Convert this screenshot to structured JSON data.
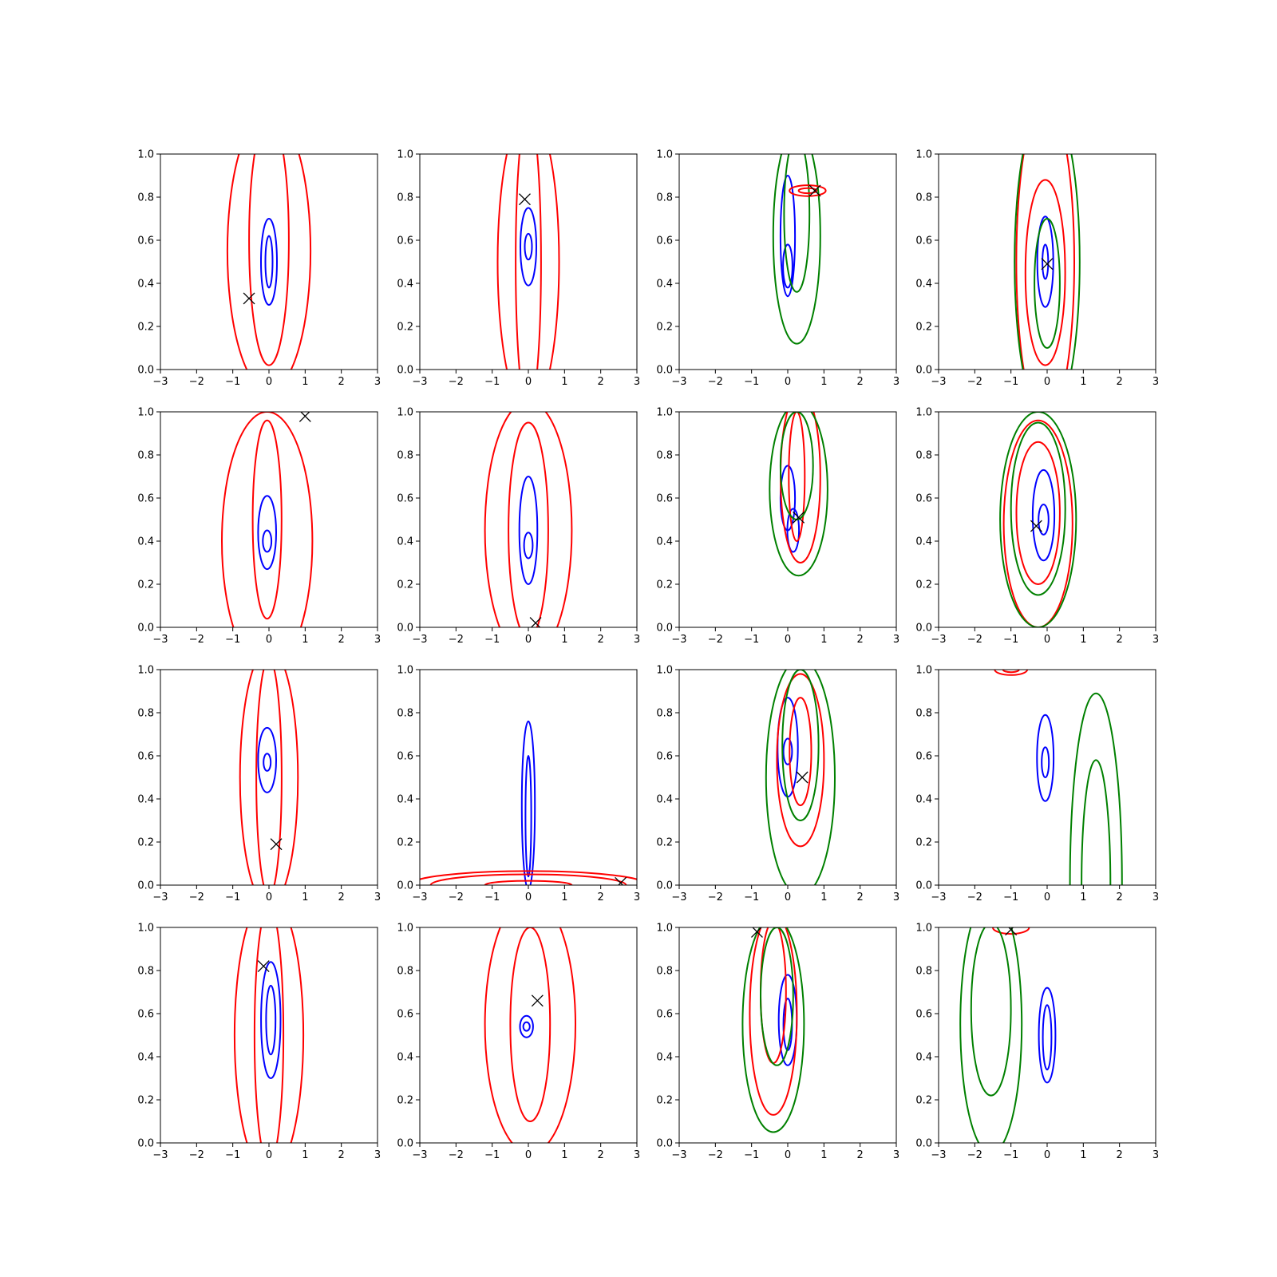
{
  "chart_data": {
    "type": "contour",
    "layout": {
      "rows": 4,
      "cols": 4
    },
    "xlim": [
      -3,
      3
    ],
    "ylim": [
      0,
      1
    ],
    "xticks": [
      "−3",
      "−2",
      "−1",
      "0",
      "1",
      "2",
      "3"
    ],
    "yticks": [
      "0.0",
      "0.2",
      "0.4",
      "0.6",
      "0.8",
      "1.0"
    ],
    "colors": {
      "blue": "#0000ff",
      "red": "#ff0000",
      "green": "#008000",
      "marker": "#000000"
    },
    "marker_symbol": "x",
    "panels": [
      {
        "marker": [
          -0.55,
          0.33
        ],
        "contours": [
          {
            "color": "blue",
            "cx": 0.0,
            "cy": 0.5,
            "rx": 0.22,
            "ry": 0.2
          },
          {
            "color": "blue",
            "cx": 0.0,
            "cy": 0.5,
            "rx": 0.1,
            "ry": 0.12
          },
          {
            "color": "red",
            "cx": 0.0,
            "cy": 0.55,
            "rx": 1.15,
            "ry": 0.65
          },
          {
            "color": "red",
            "cx": 0.0,
            "cy": 0.6,
            "rx": 0.55,
            "ry": 0.58
          }
        ]
      },
      {
        "marker": [
          -0.1,
          0.79
        ],
        "contours": [
          {
            "color": "blue",
            "cx": 0.0,
            "cy": 0.57,
            "rx": 0.22,
            "ry": 0.18
          },
          {
            "color": "blue",
            "cx": 0.0,
            "cy": 0.57,
            "rx": 0.1,
            "ry": 0.06
          },
          {
            "color": "red",
            "cx": 0.0,
            "cy": 0.5,
            "rx": 0.85,
            "ry": 0.7
          },
          {
            "color": "red",
            "cx": 0.0,
            "cy": 0.5,
            "rx": 0.35,
            "ry": 0.7
          }
        ]
      },
      {
        "marker": [
          0.75,
          0.83
        ],
        "contours": [
          {
            "color": "blue",
            "cx": 0.0,
            "cy": 0.62,
            "rx": 0.2,
            "ry": 0.28
          },
          {
            "color": "blue",
            "cx": 0.0,
            "cy": 0.48,
            "rx": 0.13,
            "ry": 0.1
          },
          {
            "color": "green",
            "cx": 0.25,
            "cy": 0.62,
            "rx": 0.65,
            "ry": 0.5
          },
          {
            "color": "green",
            "cx": 0.25,
            "cy": 0.72,
            "rx": 0.35,
            "ry": 0.36
          },
          {
            "color": "red",
            "cx": 0.55,
            "cy": 0.83,
            "rx": 0.5,
            "ry": 0.025
          },
          {
            "color": "red",
            "cx": 0.55,
            "cy": 0.83,
            "rx": 0.25,
            "ry": 0.012
          }
        ]
      },
      {
        "marker": [
          0.0,
          0.49
        ],
        "contours": [
          {
            "color": "blue",
            "cx": -0.05,
            "cy": 0.5,
            "rx": 0.22,
            "ry": 0.21
          },
          {
            "color": "blue",
            "cx": -0.05,
            "cy": 0.5,
            "rx": 0.08,
            "ry": 0.08
          },
          {
            "color": "red",
            "cx": -0.05,
            "cy": 0.45,
            "rx": 0.55,
            "ry": 0.43
          },
          {
            "color": "red",
            "cx": -0.05,
            "cy": 0.5,
            "rx": 0.8,
            "ry": 0.75
          },
          {
            "color": "green",
            "cx": 0.0,
            "cy": 0.5,
            "rx": 0.9,
            "ry": 0.75
          },
          {
            "color": "green",
            "cx": 0.0,
            "cy": 0.4,
            "rx": 0.35,
            "ry": 0.3
          }
        ]
      },
      {
        "marker": [
          1.0,
          0.98
        ],
        "contours": [
          {
            "color": "blue",
            "cx": -0.05,
            "cy": 0.44,
            "rx": 0.25,
            "ry": 0.17
          },
          {
            "color": "blue",
            "cx": -0.05,
            "cy": 0.4,
            "rx": 0.12,
            "ry": 0.05
          },
          {
            "color": "red",
            "cx": -0.05,
            "cy": 0.4,
            "rx": 1.25,
            "ry": 0.6
          },
          {
            "color": "red",
            "cx": -0.05,
            "cy": 0.5,
            "rx": 0.4,
            "ry": 0.46
          }
        ]
      },
      {
        "marker": [
          0.2,
          0.02
        ],
        "contours": [
          {
            "color": "blue",
            "cx": 0.0,
            "cy": 0.45,
            "rx": 0.25,
            "ry": 0.25
          },
          {
            "color": "blue",
            "cx": 0.0,
            "cy": 0.38,
            "rx": 0.12,
            "ry": 0.06
          },
          {
            "color": "red",
            "cx": 0.0,
            "cy": 0.45,
            "rx": 1.2,
            "ry": 0.6
          },
          {
            "color": "red",
            "cx": 0.0,
            "cy": 0.45,
            "rx": 0.55,
            "ry": 0.5
          }
        ]
      },
      {
        "marker": [
          0.3,
          0.51
        ],
        "contours": [
          {
            "color": "blue",
            "cx": 0.0,
            "cy": 0.6,
            "rx": 0.2,
            "ry": 0.15
          },
          {
            "color": "blue",
            "cx": 0.15,
            "cy": 0.45,
            "rx": 0.16,
            "ry": 0.1
          },
          {
            "color": "red",
            "cx": 0.35,
            "cy": 0.7,
            "rx": 0.55,
            "ry": 0.4
          },
          {
            "color": "red",
            "cx": 0.25,
            "cy": 0.7,
            "rx": 0.22,
            "ry": 0.3
          },
          {
            "color": "green",
            "cx": 0.3,
            "cy": 0.64,
            "rx": 0.8,
            "ry": 0.4
          },
          {
            "color": "green",
            "cx": 0.25,
            "cy": 0.75,
            "rx": 0.45,
            "ry": 0.25
          }
        ]
      },
      {
        "marker": [
          -0.3,
          0.47
        ],
        "contours": [
          {
            "color": "blue",
            "cx": -0.1,
            "cy": 0.52,
            "rx": 0.3,
            "ry": 0.21
          },
          {
            "color": "blue",
            "cx": -0.1,
            "cy": 0.5,
            "rx": 0.14,
            "ry": 0.07
          },
          {
            "color": "red",
            "cx": -0.25,
            "cy": 0.53,
            "rx": 0.6,
            "ry": 0.33
          },
          {
            "color": "red",
            "cx": -0.25,
            "cy": 0.48,
            "rx": 0.95,
            "ry": 0.48
          },
          {
            "color": "green",
            "cx": -0.25,
            "cy": 0.5,
            "rx": 1.05,
            "ry": 0.5
          },
          {
            "color": "green",
            "cx": -0.25,
            "cy": 0.55,
            "rx": 0.75,
            "ry": 0.4
          }
        ]
      },
      {
        "marker": [
          0.2,
          0.19
        ],
        "contours": [
          {
            "color": "blue",
            "cx": -0.05,
            "cy": 0.58,
            "rx": 0.25,
            "ry": 0.15
          },
          {
            "color": "blue",
            "cx": -0.05,
            "cy": 0.57,
            "rx": 0.1,
            "ry": 0.04
          },
          {
            "color": "red",
            "cx": 0.0,
            "cy": 0.5,
            "rx": 0.8,
            "ry": 0.6
          },
          {
            "color": "red",
            "cx": 0.0,
            "cy": 0.5,
            "rx": 0.35,
            "ry": 0.55
          }
        ]
      },
      {
        "marker": [
          2.55,
          0.01
        ],
        "contours": [
          {
            "color": "blue",
            "cx": 0.0,
            "cy": 0.37,
            "rx": 0.18,
            "ry": 0.39
          },
          {
            "color": "blue",
            "cx": 0.0,
            "cy": 0.32,
            "rx": 0.08,
            "ry": 0.28
          },
          {
            "color": "red",
            "cx": 0.0,
            "cy": 0.0,
            "rx": 3.3,
            "ry": 0.065
          },
          {
            "color": "red",
            "cx": 0.0,
            "cy": 0.0,
            "rx": 2.7,
            "ry": 0.05
          },
          {
            "color": "red",
            "cx": 0.0,
            "cy": 0.0,
            "rx": 1.2,
            "ry": 0.02
          }
        ]
      },
      {
        "marker": [
          0.4,
          0.5
        ],
        "contours": [
          {
            "color": "blue",
            "cx": 0.0,
            "cy": 0.64,
            "rx": 0.28,
            "ry": 0.23
          },
          {
            "color": "blue",
            "cx": 0.0,
            "cy": 0.62,
            "rx": 0.12,
            "ry": 0.06
          },
          {
            "color": "red",
            "cx": 0.35,
            "cy": 0.58,
            "rx": 0.65,
            "ry": 0.4
          },
          {
            "color": "red",
            "cx": 0.35,
            "cy": 0.62,
            "rx": 0.3,
            "ry": 0.25
          },
          {
            "color": "green",
            "cx": 0.35,
            "cy": 0.5,
            "rx": 0.95,
            "ry": 0.55
          },
          {
            "color": "green",
            "cx": 0.35,
            "cy": 0.65,
            "rx": 0.5,
            "ry": 0.35
          }
        ]
      },
      {
        "marker": null,
        "contours": [
          {
            "color": "blue",
            "cx": -0.05,
            "cy": 0.59,
            "rx": 0.23,
            "ry": 0.2
          },
          {
            "color": "blue",
            "cx": -0.05,
            "cy": 0.57,
            "rx": 0.1,
            "ry": 0.07
          },
          {
            "color": "red",
            "cx": -1.0,
            "cy": 1.0,
            "rx": 0.45,
            "ry": 0.025
          },
          {
            "color": "red",
            "cx": -1.0,
            "cy": 1.0,
            "rx": 0.22,
            "ry": 0.012
          },
          {
            "color": "green",
            "cx": 1.35,
            "cy": 0.0,
            "rx": 0.72,
            "ry": 0.89
          },
          {
            "color": "green",
            "cx": 1.35,
            "cy": 0.0,
            "rx": 0.4,
            "ry": 0.58
          }
        ]
      },
      {
        "marker": [
          -0.15,
          0.82
        ],
        "contours": [
          {
            "color": "blue",
            "cx": 0.05,
            "cy": 0.57,
            "rx": 0.27,
            "ry": 0.27
          },
          {
            "color": "blue",
            "cx": 0.05,
            "cy": 0.57,
            "rx": 0.13,
            "ry": 0.16
          },
          {
            "color": "red",
            "cx": 0.0,
            "cy": 0.5,
            "rx": 0.95,
            "ry": 0.65
          },
          {
            "color": "red",
            "cx": 0.0,
            "cy": 0.5,
            "rx": 0.4,
            "ry": 0.6
          }
        ]
      },
      {
        "marker": [
          0.25,
          0.66
        ],
        "contours": [
          {
            "color": "blue",
            "cx": -0.05,
            "cy": 0.54,
            "rx": 0.18,
            "ry": 0.05
          },
          {
            "color": "blue",
            "cx": -0.05,
            "cy": 0.54,
            "rx": 0.09,
            "ry": 0.02
          },
          {
            "color": "red",
            "cx": 0.05,
            "cy": 0.55,
            "rx": 1.25,
            "ry": 0.6
          },
          {
            "color": "red",
            "cx": 0.05,
            "cy": 0.55,
            "rx": 0.55,
            "ry": 0.45
          }
        ]
      },
      {
        "marker": [
          -0.85,
          0.98
        ],
        "contours": [
          {
            "color": "blue",
            "cx": 0.0,
            "cy": 0.57,
            "rx": 0.25,
            "ry": 0.21
          },
          {
            "color": "blue",
            "cx": 0.0,
            "cy": 0.55,
            "rx": 0.12,
            "ry": 0.12
          },
          {
            "color": "red",
            "cx": -0.4,
            "cy": 0.6,
            "rx": 0.65,
            "ry": 0.47
          },
          {
            "color": "red",
            "cx": -0.4,
            "cy": 0.7,
            "rx": 0.35,
            "ry": 0.33
          },
          {
            "color": "green",
            "cx": -0.4,
            "cy": 0.55,
            "rx": 0.85,
            "ry": 0.5
          },
          {
            "color": "green",
            "cx": -0.3,
            "cy": 0.68,
            "rx": 0.45,
            "ry": 0.32
          }
        ]
      },
      {
        "marker": [
          -1.0,
          0.99
        ],
        "contours": [
          {
            "color": "blue",
            "cx": 0.0,
            "cy": 0.5,
            "rx": 0.23,
            "ry": 0.22
          },
          {
            "color": "blue",
            "cx": 0.0,
            "cy": 0.49,
            "rx": 0.12,
            "ry": 0.15
          },
          {
            "color": "red",
            "cx": -1.0,
            "cy": 1.0,
            "rx": 0.5,
            "ry": 0.03
          },
          {
            "color": "green",
            "cx": -1.55,
            "cy": 0.55,
            "rx": 0.85,
            "ry": 0.6
          },
          {
            "color": "green",
            "cx": -1.55,
            "cy": 0.62,
            "rx": 0.55,
            "ry": 0.4
          }
        ]
      }
    ]
  }
}
